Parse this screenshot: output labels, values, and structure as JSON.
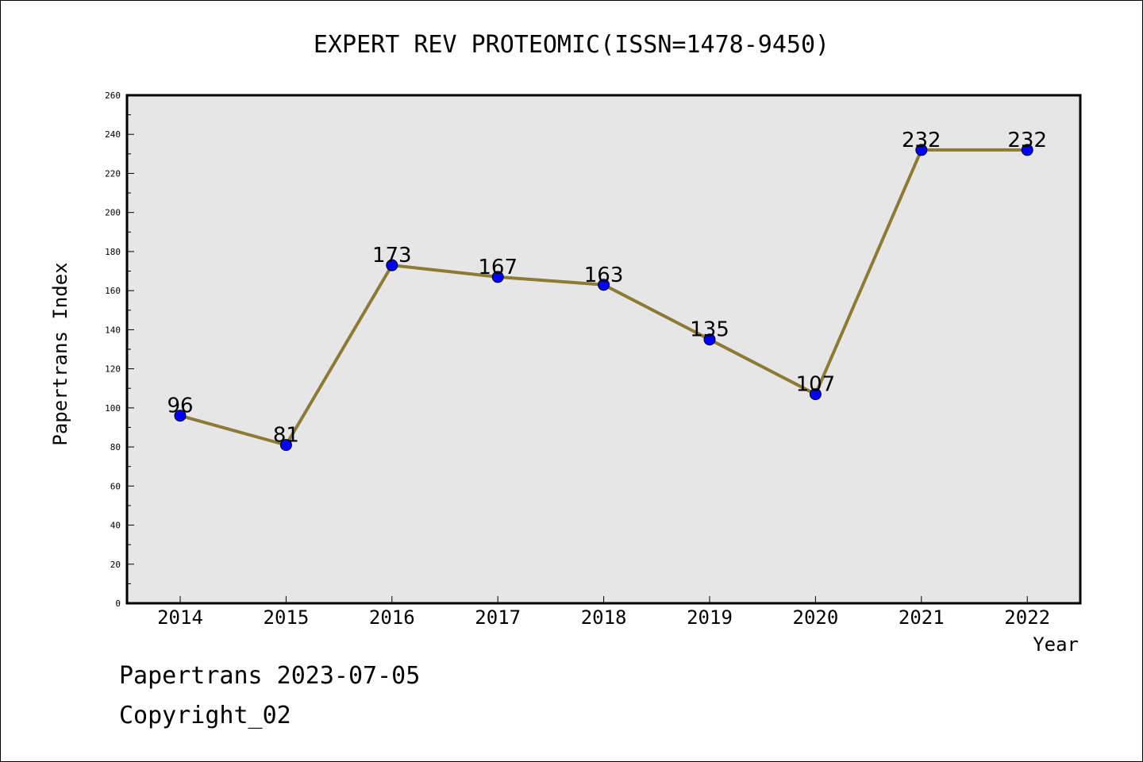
{
  "chart_data": {
    "type": "line",
    "title": "EXPERT REV PROTEOMIC(ISSN=1478-9450)",
    "xlabel": "Year",
    "ylabel": "Papertrans Index",
    "categories": [
      "2014",
      "2015",
      "2016",
      "2017",
      "2018",
      "2019",
      "2020",
      "2021",
      "2022"
    ],
    "values": [
      96,
      81,
      173,
      167,
      163,
      135,
      107,
      232,
      232
    ],
    "data_labels": [
      "96",
      "81",
      "173",
      "167",
      "163",
      "135",
      "107",
      "232",
      "232"
    ],
    "ylim": [
      0,
      260
    ],
    "yticks": [
      "0",
      "20",
      "40",
      "60",
      "80",
      "100",
      "120",
      "140",
      "160",
      "180",
      "200",
      "220",
      "240",
      "260"
    ],
    "grid": false,
    "legend": "none",
    "colors": {
      "line": "#8c7a35",
      "marker": "#0000ff",
      "plot_background": "#e6e6e6"
    }
  },
  "footer": {
    "date_line": "Papertrans 2023-07-05",
    "copyright_line": "Copyright_02"
  }
}
